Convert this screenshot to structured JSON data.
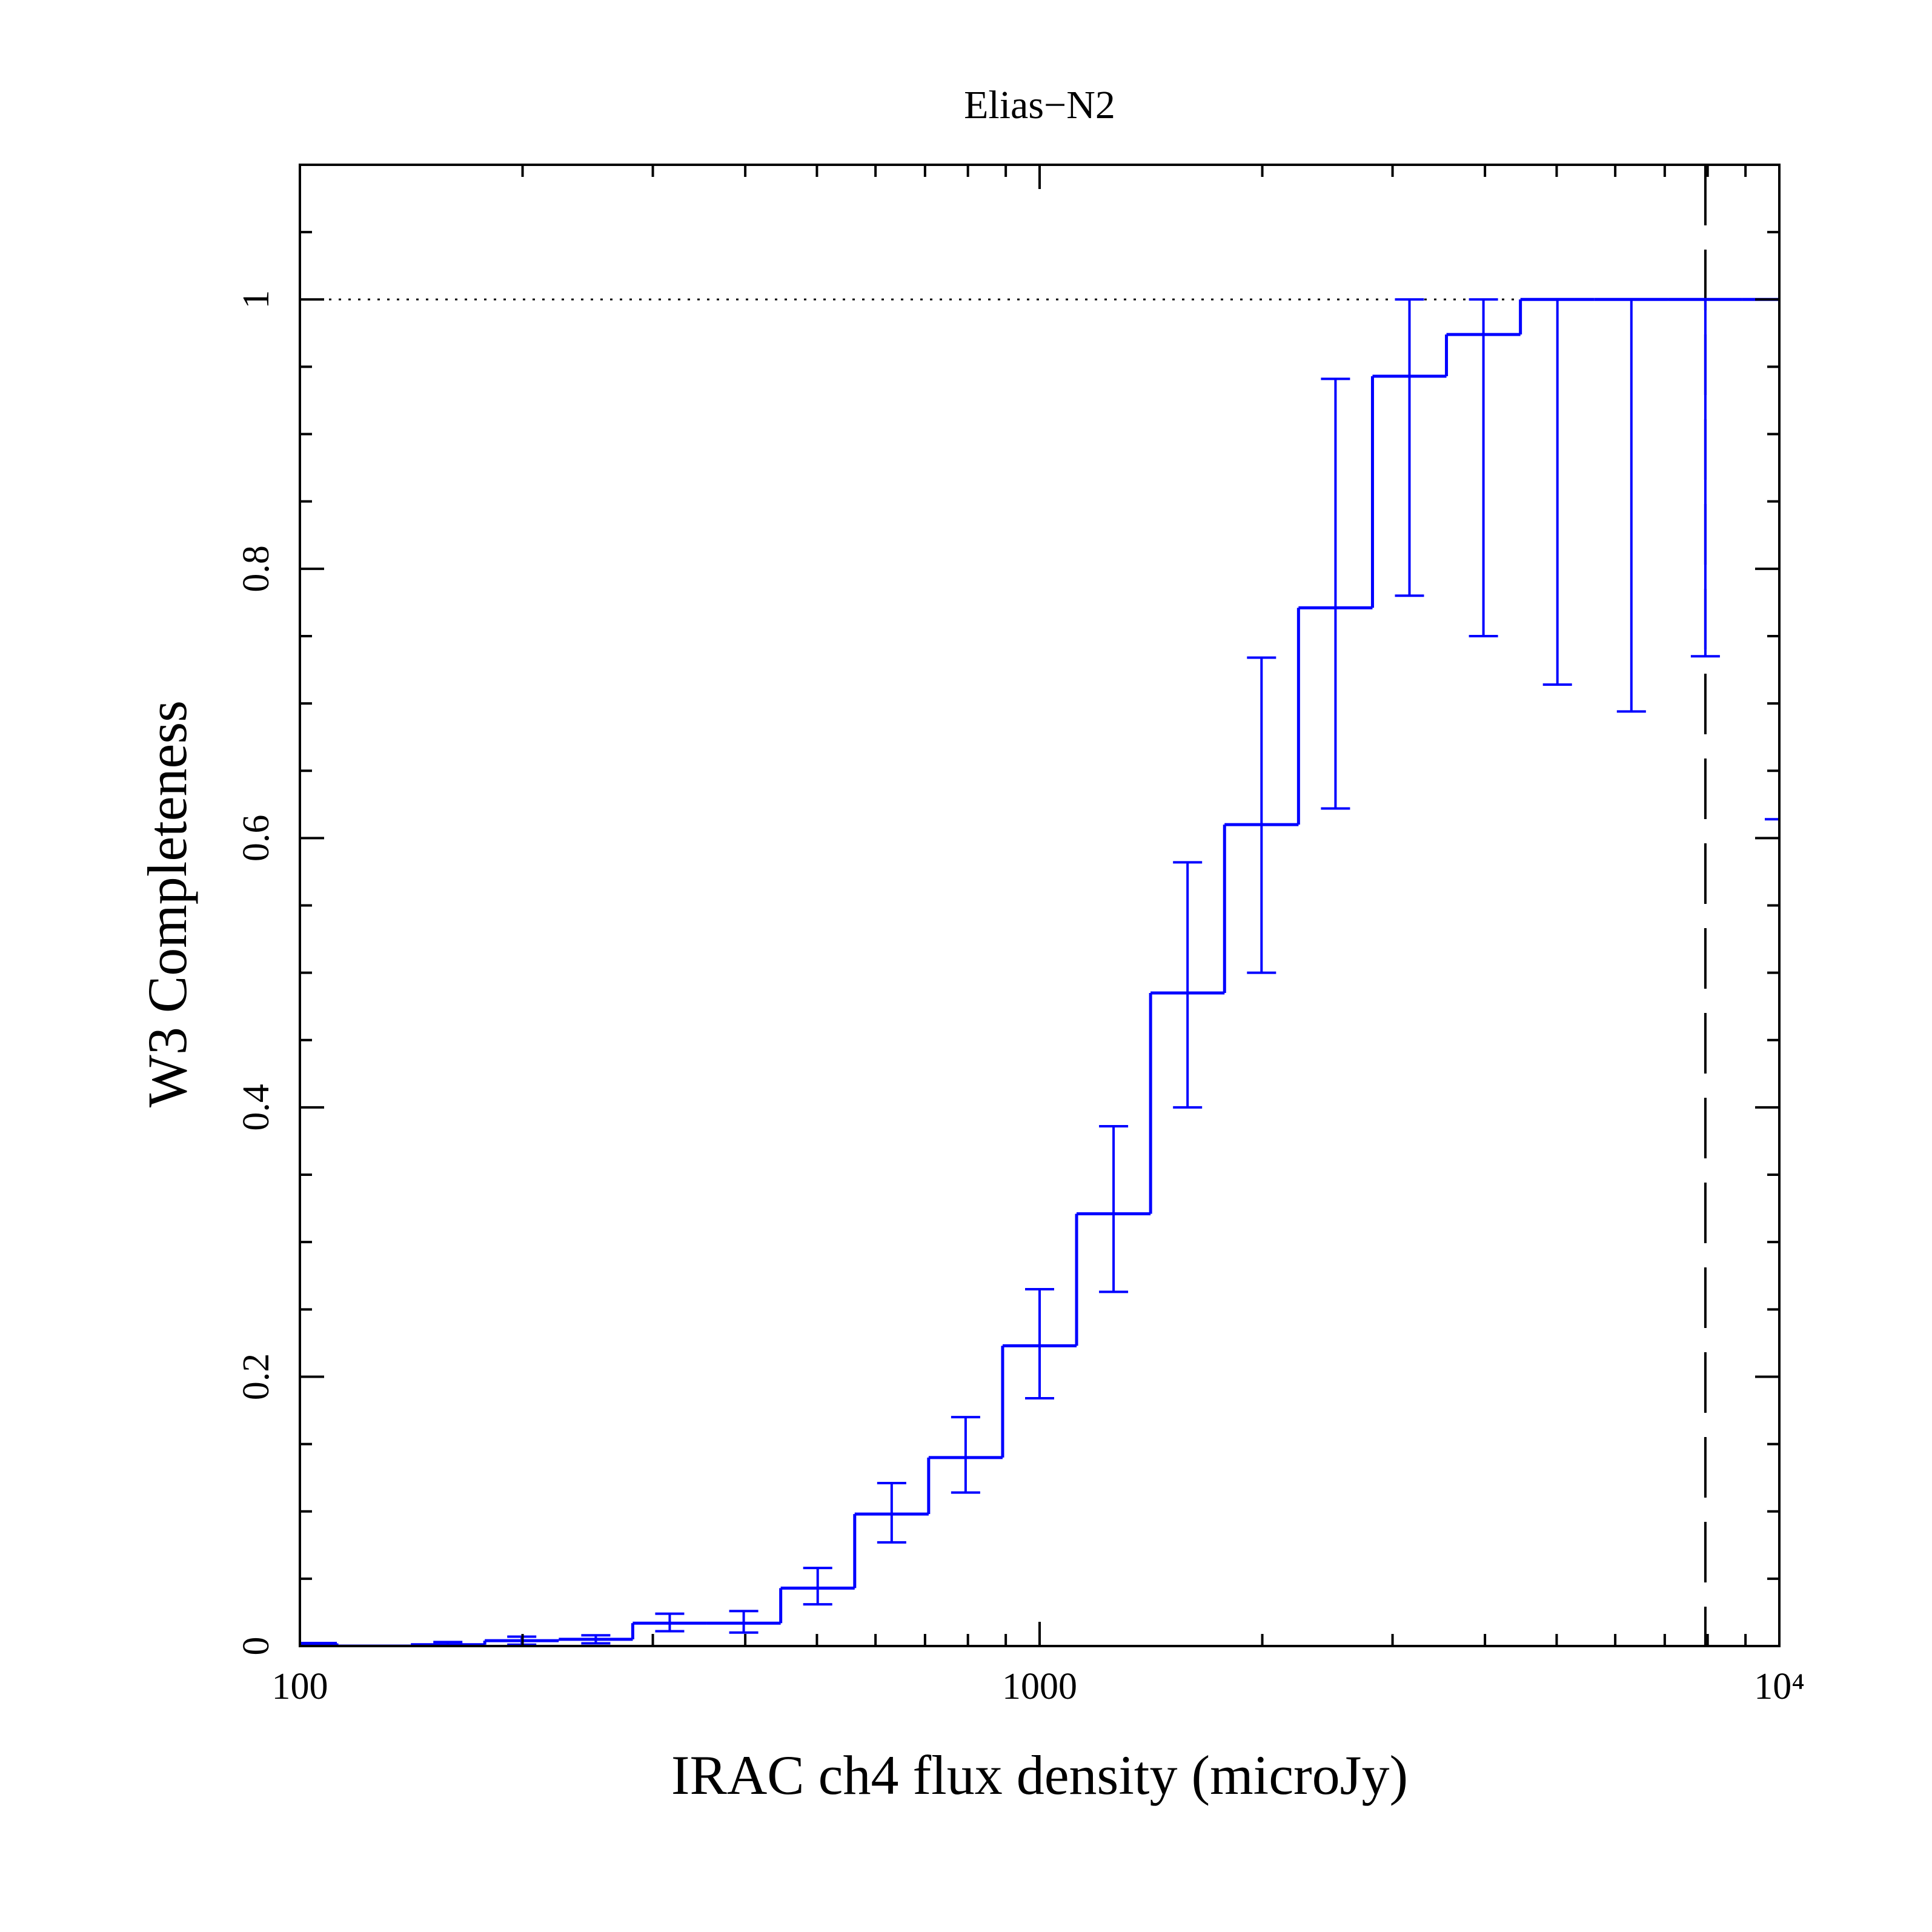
{
  "chart_data": {
    "type": "step",
    "title": "Elias−N2",
    "xlabel": "IRAC ch4 flux density (microJy)",
    "ylabel": "W3 Completeness",
    "xlog": true,
    "bin_halfwidth_dex": 0.05,
    "x": [
      100,
      125.9,
      158.5,
      199.5,
      251.2,
      316.2,
      398.1,
      501.2,
      631,
      794.3,
      1000,
      1258.9,
      1584.9,
      1995.3,
      2511.9,
      3162.3,
      3981.1,
      5011.9,
      6309.6,
      7943.3,
      10000
    ],
    "series": [
      {
        "name": "W3",
        "color": "#0000ff",
        "values": [
          0.002,
          0,
          0.001,
          0.004,
          0.005,
          0.017,
          0.017,
          0.043,
          0.098,
          0.14,
          0.223,
          0.321,
          0.485,
          0.61,
          0.771,
          0.943,
          0.974,
          1.0,
          1.0,
          1.0,
          1.0
        ],
        "lower": [
          null,
          null,
          0,
          0.001,
          0.002,
          0.011,
          0.01,
          0.031,
          0.077,
          0.114,
          0.184,
          0.263,
          0.4,
          0.5,
          0.622,
          0.78,
          0.75,
          0.714,
          0.694,
          0.735,
          0.614
        ],
        "upper": [
          null,
          null,
          0.003,
          0.007,
          0.008,
          0.024,
          0.026,
          0.058,
          0.121,
          0.17,
          0.265,
          0.386,
          0.582,
          0.734,
          0.941,
          1.0,
          1.0,
          1.0,
          1.0,
          1.0,
          1.0
        ]
      }
    ],
    "xlim": [
      100,
      10000
    ],
    "ylim": [
      0,
      1.1
    ],
    "xticks": [
      100,
      1000,
      {
        "value": 10000,
        "label": "10⁴"
      }
    ],
    "xminor": [
      200,
      300,
      400,
      500,
      600,
      700,
      800,
      900,
      2000,
      3000,
      4000,
      5000,
      6000,
      7000,
      8000,
      9000
    ],
    "yticks": [
      0,
      0.2,
      0.4,
      0.6,
      0.8,
      1
    ],
    "yminor": [
      0.05,
      0.1,
      0.15,
      0.25,
      0.3,
      0.35,
      0.45,
      0.5,
      0.55,
      0.65,
      0.7,
      0.75,
      0.85,
      0.9,
      0.95,
      1.05
    ],
    "hline": 1,
    "vline": 7943.3
  }
}
